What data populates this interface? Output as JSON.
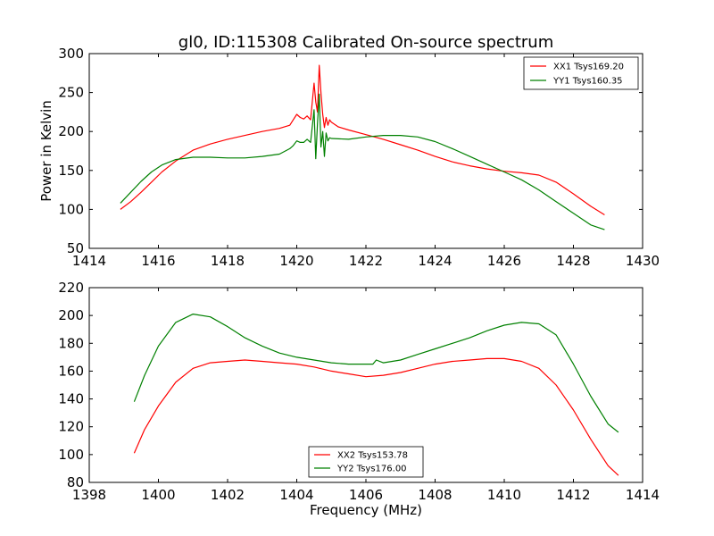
{
  "title": "gl0, ID:115308 Calibrated On-source spectrum",
  "colors": {
    "red": "#ff0000",
    "green": "#008000",
    "frame": "#000000"
  },
  "chart_data": [
    {
      "type": "line",
      "title": "gl0, ID:115308 Calibrated On-source spectrum",
      "xlabel": "",
      "ylabel": "Power in Kelvin",
      "xlim": [
        1414,
        1430
      ],
      "ylim": [
        50,
        300
      ],
      "xticks": [
        1414,
        1416,
        1418,
        1420,
        1422,
        1424,
        1426,
        1428,
        1430
      ],
      "yticks": [
        50,
        100,
        150,
        200,
        250,
        300
      ],
      "legend_position": "top-right",
      "series": [
        {
          "name": "XX1 Tsys169.20",
          "color": "#ff0000",
          "x": [
            1414.9,
            1415.2,
            1415.5,
            1415.8,
            1416.1,
            1416.5,
            1417.0,
            1417.5,
            1418.0,
            1418.5,
            1419.0,
            1419.5,
            1419.8,
            1419.9,
            1420.0,
            1420.1,
            1420.2,
            1420.3,
            1420.4,
            1420.5,
            1420.55,
            1420.6,
            1420.65,
            1420.7,
            1420.75,
            1420.8,
            1420.85,
            1420.9,
            1420.95,
            1421.0,
            1421.2,
            1421.5,
            1422.0,
            1422.5,
            1423.0,
            1423.5,
            1424.0,
            1424.5,
            1425.0,
            1425.5,
            1426.0,
            1426.5,
            1427.0,
            1427.5,
            1428.0,
            1428.5,
            1428.9
          ],
          "y": [
            100,
            110,
            122,
            135,
            148,
            162,
            176,
            184,
            190,
            195,
            200,
            204,
            208,
            215,
            222,
            218,
            216,
            220,
            215,
            262,
            238,
            225,
            285,
            250,
            222,
            205,
            218,
            208,
            215,
            212,
            206,
            202,
            196,
            190,
            183,
            176,
            168,
            161,
            156,
            152,
            149,
            147,
            144,
            135,
            120,
            104,
            93
          ]
        },
        {
          "name": "YY1 Tsys160.35",
          "color": "#008000",
          "x": [
            1414.9,
            1415.2,
            1415.5,
            1415.8,
            1416.1,
            1416.5,
            1417.0,
            1417.5,
            1418.0,
            1418.5,
            1419.0,
            1419.5,
            1419.8,
            1419.9,
            1420.0,
            1420.1,
            1420.2,
            1420.3,
            1420.4,
            1420.5,
            1420.55,
            1420.6,
            1420.65,
            1420.7,
            1420.75,
            1420.8,
            1420.85,
            1420.9,
            1420.95,
            1421.0,
            1421.5,
            1422.0,
            1422.5,
            1423.0,
            1423.5,
            1424.0,
            1424.5,
            1425.0,
            1425.5,
            1426.0,
            1426.5,
            1427.0,
            1427.5,
            1428.0,
            1428.5,
            1428.9
          ],
          "y": [
            108,
            122,
            136,
            148,
            157,
            164,
            167,
            167,
            166,
            166,
            168,
            171,
            178,
            182,
            188,
            186,
            186,
            190,
            186,
            228,
            165,
            210,
            248,
            180,
            200,
            168,
            198,
            188,
            192,
            191,
            190,
            193,
            195,
            195,
            193,
            187,
            178,
            168,
            158,
            148,
            138,
            125,
            110,
            95,
            80,
            74
          ]
        }
      ]
    },
    {
      "type": "line",
      "title": "",
      "xlabel": "Frequency (MHz)",
      "ylabel": "",
      "xlim": [
        1398,
        1414
      ],
      "ylim": [
        80,
        220
      ],
      "xticks": [
        1398,
        1400,
        1402,
        1404,
        1406,
        1408,
        1410,
        1412,
        1414
      ],
      "yticks": [
        80,
        100,
        120,
        140,
        160,
        180,
        200,
        220
      ],
      "legend_position": "lower-center",
      "series": [
        {
          "name": "XX2 Tsys153.78",
          "color": "#ff0000",
          "x": [
            1399.3,
            1399.6,
            1400.0,
            1400.5,
            1401.0,
            1401.5,
            1402.0,
            1402.5,
            1403.0,
            1403.5,
            1404.0,
            1404.5,
            1405.0,
            1405.5,
            1406.0,
            1406.5,
            1407.0,
            1407.5,
            1408.0,
            1408.5,
            1409.0,
            1409.5,
            1410.0,
            1410.5,
            1411.0,
            1411.5,
            1412.0,
            1412.5,
            1413.0,
            1413.3
          ],
          "y": [
            101,
            118,
            135,
            152,
            162,
            166,
            167,
            168,
            167,
            166,
            165,
            163,
            160,
            158,
            156,
            157,
            159,
            162,
            165,
            167,
            168,
            169,
            169,
            167,
            162,
            150,
            132,
            111,
            92,
            85
          ]
        },
        {
          "name": "YY2 Tsys176.00",
          "color": "#008000",
          "x": [
            1399.3,
            1399.6,
            1400.0,
            1400.5,
            1401.0,
            1401.5,
            1402.0,
            1402.5,
            1403.0,
            1403.5,
            1404.0,
            1404.5,
            1405.0,
            1405.5,
            1406.0,
            1406.2,
            1406.3,
            1406.5,
            1407.0,
            1407.5,
            1408.0,
            1408.5,
            1409.0,
            1409.5,
            1410.0,
            1410.5,
            1411.0,
            1411.5,
            1412.0,
            1412.5,
            1413.0,
            1413.3
          ],
          "y": [
            138,
            157,
            178,
            195,
            201,
            199,
            192,
            184,
            178,
            173,
            170,
            168,
            166,
            165,
            165,
            165,
            168,
            166,
            168,
            172,
            176,
            180,
            184,
            189,
            193,
            195,
            194,
            186,
            165,
            142,
            122,
            116
          ]
        }
      ]
    }
  ]
}
